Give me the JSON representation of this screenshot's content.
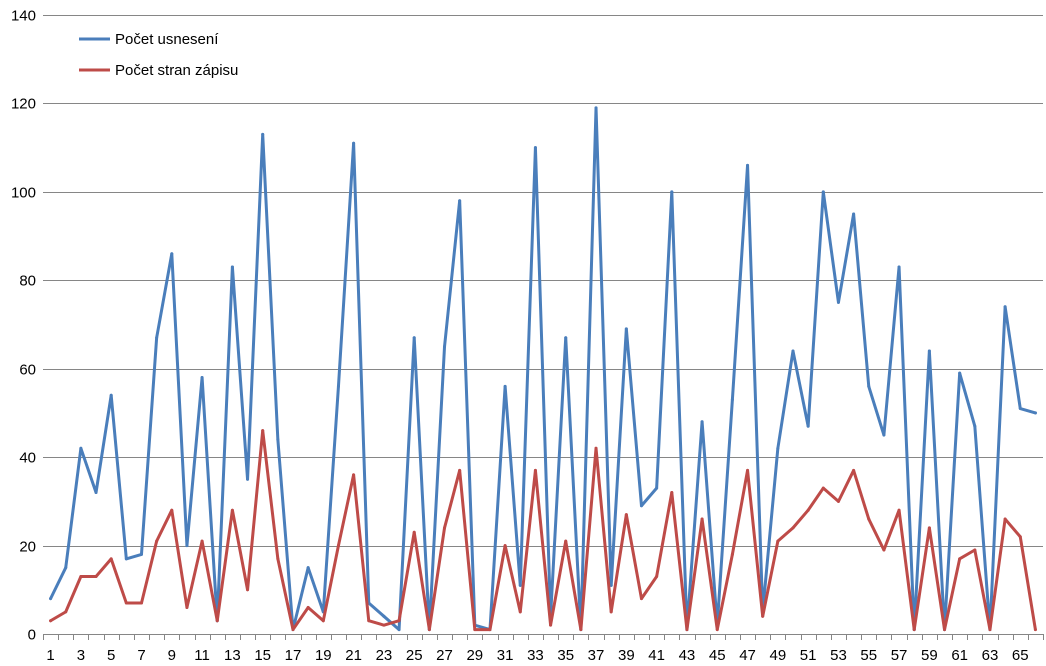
{
  "chart_data": {
    "type": "line",
    "title": "",
    "xlabel": "",
    "ylabel": "",
    "x": [
      1,
      2,
      3,
      4,
      5,
      6,
      7,
      8,
      9,
      10,
      11,
      12,
      13,
      14,
      15,
      16,
      17,
      18,
      19,
      20,
      21,
      22,
      23,
      24,
      25,
      26,
      27,
      28,
      29,
      30,
      31,
      32,
      33,
      34,
      35,
      36,
      37,
      38,
      39,
      40,
      41,
      42,
      43,
      44,
      45,
      46,
      47,
      48,
      49,
      50,
      51,
      52,
      53,
      54,
      55,
      56,
      57,
      58,
      59,
      60,
      61,
      62,
      63,
      64,
      65,
      66
    ],
    "x_tick_labels": [
      "1",
      "3",
      "5",
      "7",
      "9",
      "11",
      "13",
      "15",
      "17",
      "19",
      "21",
      "23",
      "25",
      "27",
      "29",
      "31",
      "33",
      "35",
      "37",
      "39",
      "41",
      "43",
      "45",
      "47",
      "49",
      "51",
      "53",
      "55",
      "57",
      "59",
      "61",
      "63",
      "65"
    ],
    "ylim": [
      0,
      140
    ],
    "y_ticks": [
      0,
      20,
      40,
      60,
      80,
      100,
      120,
      140
    ],
    "grid": "horizontal",
    "legend_position": "top-left",
    "series": [
      {
        "name": "Počet usnesení",
        "color": "#4A7EBB",
        "values": [
          8,
          15,
          42,
          32,
          54,
          17,
          18,
          67,
          86,
          20,
          58,
          3,
          83,
          35,
          113,
          44,
          1,
          15,
          5,
          56,
          111,
          7,
          4,
          1,
          67,
          1,
          65,
          98,
          2,
          1,
          56,
          11,
          110,
          4,
          67,
          1,
          119,
          11,
          69,
          29,
          33,
          100,
          1,
          48,
          2,
          53,
          106,
          5,
          42,
          64,
          47,
          100,
          75,
          95,
          56,
          45,
          83,
          1,
          64,
          1,
          59,
          47,
          1,
          74,
          51,
          50
        ]
      },
      {
        "name": "Počet stran zápisu",
        "color": "#BE4B48",
        "values": [
          3,
          5,
          13,
          13,
          17,
          7,
          7,
          21,
          28,
          6,
          21,
          3,
          28,
          10,
          46,
          17,
          1,
          6,
          3,
          20,
          36,
          3,
          2,
          3,
          23,
          1,
          24,
          37,
          1,
          1,
          20,
          5,
          37,
          2,
          21,
          1,
          42,
          5,
          27,
          8,
          13,
          32,
          1,
          26,
          1,
          18,
          37,
          4,
          21,
          24,
          28,
          33,
          30,
          37,
          26,
          19,
          28,
          1,
          24,
          1,
          17,
          19,
          1,
          26,
          22,
          1
        ]
      }
    ]
  }
}
